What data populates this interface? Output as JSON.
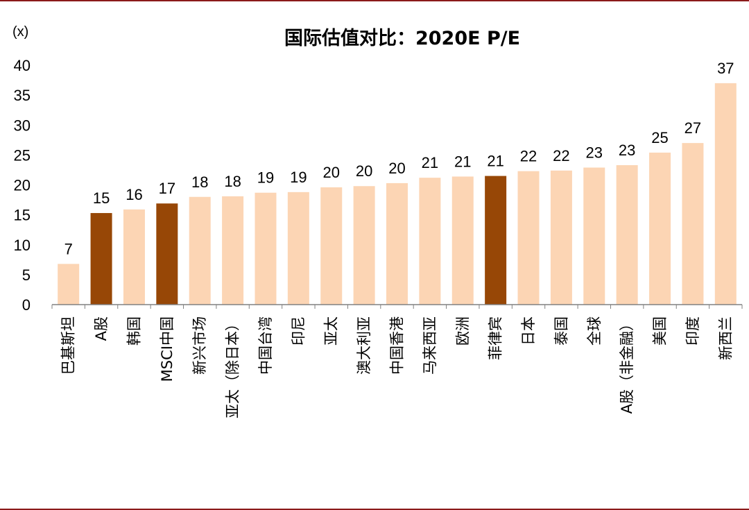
{
  "chart_data": {
    "type": "bar",
    "title": "国际估值对比：2020E P/E",
    "ylabel": "(x)",
    "xlabel": "",
    "ylim": [
      0,
      40
    ],
    "yticks": [
      "0",
      "5",
      "10",
      "15",
      "20",
      "25",
      "30",
      "35",
      "40"
    ],
    "grid": false,
    "categories": [
      "巴基斯坦",
      "A股",
      "韩国",
      "MSCI中国",
      "新兴市场",
      "亚太（除日本）",
      "中国台湾",
      "印尼",
      "亚太",
      "澳大利亚",
      "中国香港",
      "马来西亚",
      "欧洲",
      "菲律宾",
      "日本",
      "泰国",
      "全球",
      "A股（非金融）",
      "美国",
      "印度",
      "新西兰"
    ],
    "values": [
      6.8,
      15.3,
      15.9,
      16.9,
      18.0,
      18.1,
      18.7,
      18.8,
      19.6,
      19.8,
      20.3,
      21.2,
      21.4,
      21.5,
      22.3,
      22.4,
      22.9,
      23.3,
      25.4,
      27.0,
      37.0
    ],
    "data_labels": [
      "7",
      "15",
      "16",
      "17",
      "18",
      "18",
      "19",
      "19",
      "20",
      "20",
      "20",
      "21",
      "21",
      "21",
      "22",
      "22",
      "23",
      "23",
      "25",
      "27",
      "37"
    ],
    "highlight_indices": [
      1,
      3,
      13
    ],
    "colors": {
      "normal": "#fcd5b4",
      "highlight": "#974706",
      "frame": "#8b1a1a",
      "axis": "#808080"
    }
  }
}
